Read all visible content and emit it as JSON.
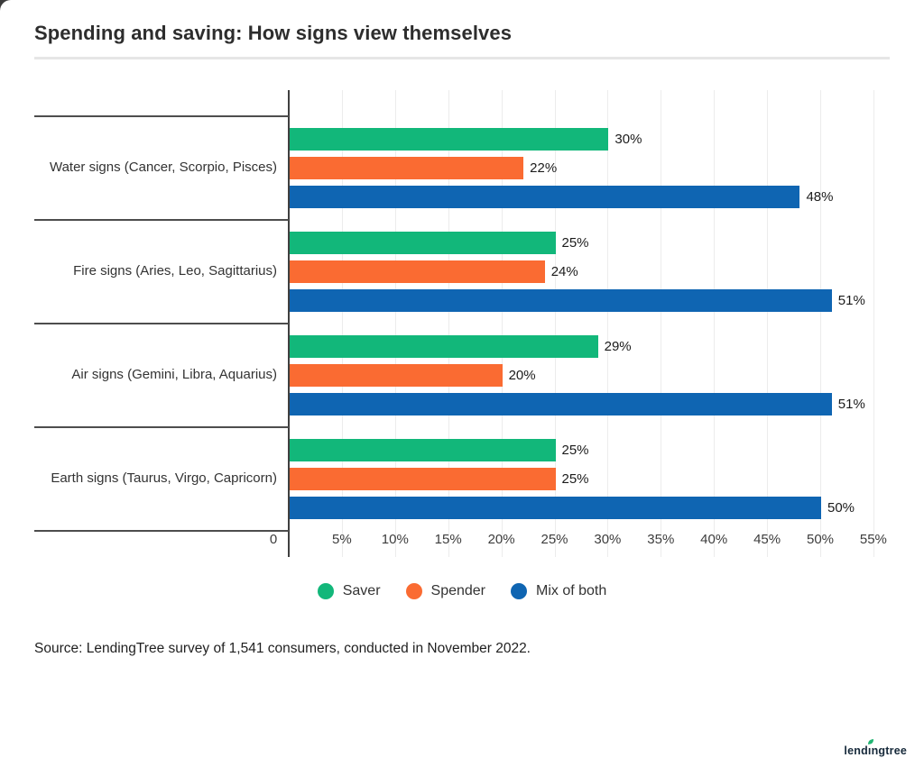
{
  "title": "Spending and saving: How signs view themselves",
  "chart_data": {
    "type": "bar",
    "orientation": "horizontal",
    "title": "Spending and saving: How signs view themselves",
    "categories": [
      "Water signs (Cancer, Scorpio, Pisces)",
      "Fire signs (Aries, Leo, Sagittarius)",
      "Air signs (Gemini, Libra, Aquarius)",
      "Earth signs (Taurus, Virgo, Capricorn)"
    ],
    "series": [
      {
        "name": "Saver",
        "color": "#12b77a",
        "values": [
          30,
          25,
          29,
          25
        ]
      },
      {
        "name": "Spender",
        "color": "#fa6b32",
        "values": [
          22,
          24,
          20,
          25
        ]
      },
      {
        "name": "Mix of both",
        "color": "#0f65b2",
        "values": [
          48,
          51,
          51,
          50
        ]
      }
    ],
    "value_suffix": "%",
    "x_ticks": [
      "0",
      "5%",
      "10%",
      "15%",
      "20%",
      "25%",
      "30%",
      "35%",
      "40%",
      "45%",
      "50%",
      "55%"
    ],
    "xlim": [
      0,
      55
    ],
    "grid": true,
    "legend_position": "bottom"
  },
  "legend": {
    "items": [
      {
        "label": "Saver",
        "color": "#12b77a"
      },
      {
        "label": "Spender",
        "color": "#fa6b32"
      },
      {
        "label": "Mix of both",
        "color": "#0f65b2"
      }
    ]
  },
  "source": "Source: LendingTree survey of 1,541 consumers, conducted in November 2022.",
  "logo": {
    "text": "lendingtree",
    "leaf_color": "#21b573"
  }
}
